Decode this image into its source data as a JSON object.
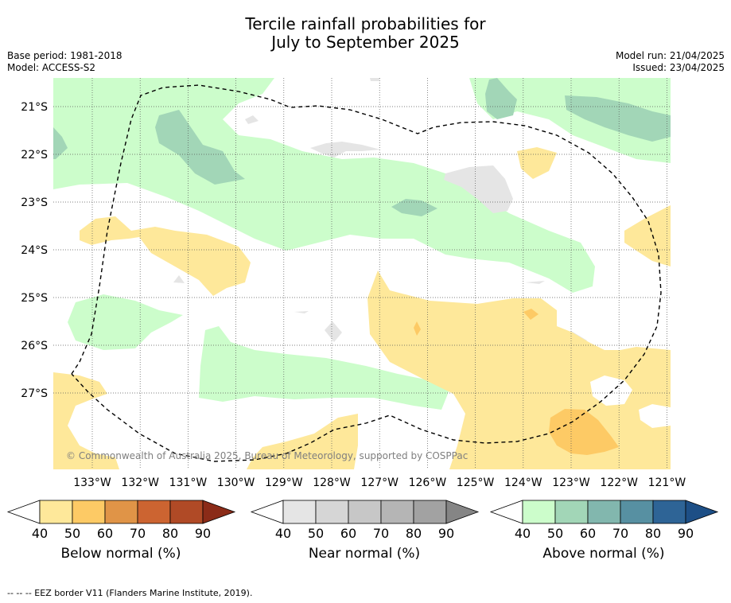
{
  "title_line1": "Tercile rainfall probabilities for",
  "title_line2": "July to September 2025",
  "base_period": "Base period: 1981-2018",
  "model": "Model: ACCESS-S2",
  "model_run": "Model run: 21/04/2025",
  "issued": "Issued: 23/04/2025",
  "copyright": "© Commonwealth of Australia 2025, Bureau of Meteorology, supported by COSPPac",
  "footnote": "--  --  -- EEZ border V11 (Flanders Marine Institute, 2019).",
  "lat_labels": [
    "21°S",
    "22°S",
    "23°S",
    "24°S",
    "25°S",
    "26°S",
    "27°S"
  ],
  "lon_labels": [
    "133°W",
    "132°W",
    "131°W",
    "130°W",
    "129°W",
    "128°W",
    "127°W",
    "126°W",
    "125°W",
    "124°W",
    "123°W",
    "122°W",
    "121°W"
  ],
  "colorbars": [
    {
      "label": "Below normal (%)",
      "ticks": [
        "40",
        "50",
        "60",
        "70",
        "80",
        "90"
      ],
      "colors": [
        "#ffffff",
        "#fee89a",
        "#fdca65",
        "#e09447",
        "#cc6431",
        "#b04a26",
        "#8b2b18"
      ]
    },
    {
      "label": "Near normal (%)",
      "ticks": [
        "40",
        "50",
        "60",
        "70",
        "80",
        "90"
      ],
      "colors": [
        "#ffffff",
        "#e5e5e5",
        "#d6d6d6",
        "#c7c7c7",
        "#b5b5b5",
        "#a2a2a2",
        "#858585"
      ]
    },
    {
      "label": "Above normal (%)",
      "ticks": [
        "40",
        "50",
        "60",
        "70",
        "80",
        "90"
      ],
      "colors": [
        "#ffffff",
        "#ccfdcb",
        "#a2d6b7",
        "#82b7ae",
        "#5790a2",
        "#2e6496",
        "#1d4f86"
      ]
    }
  ]
}
